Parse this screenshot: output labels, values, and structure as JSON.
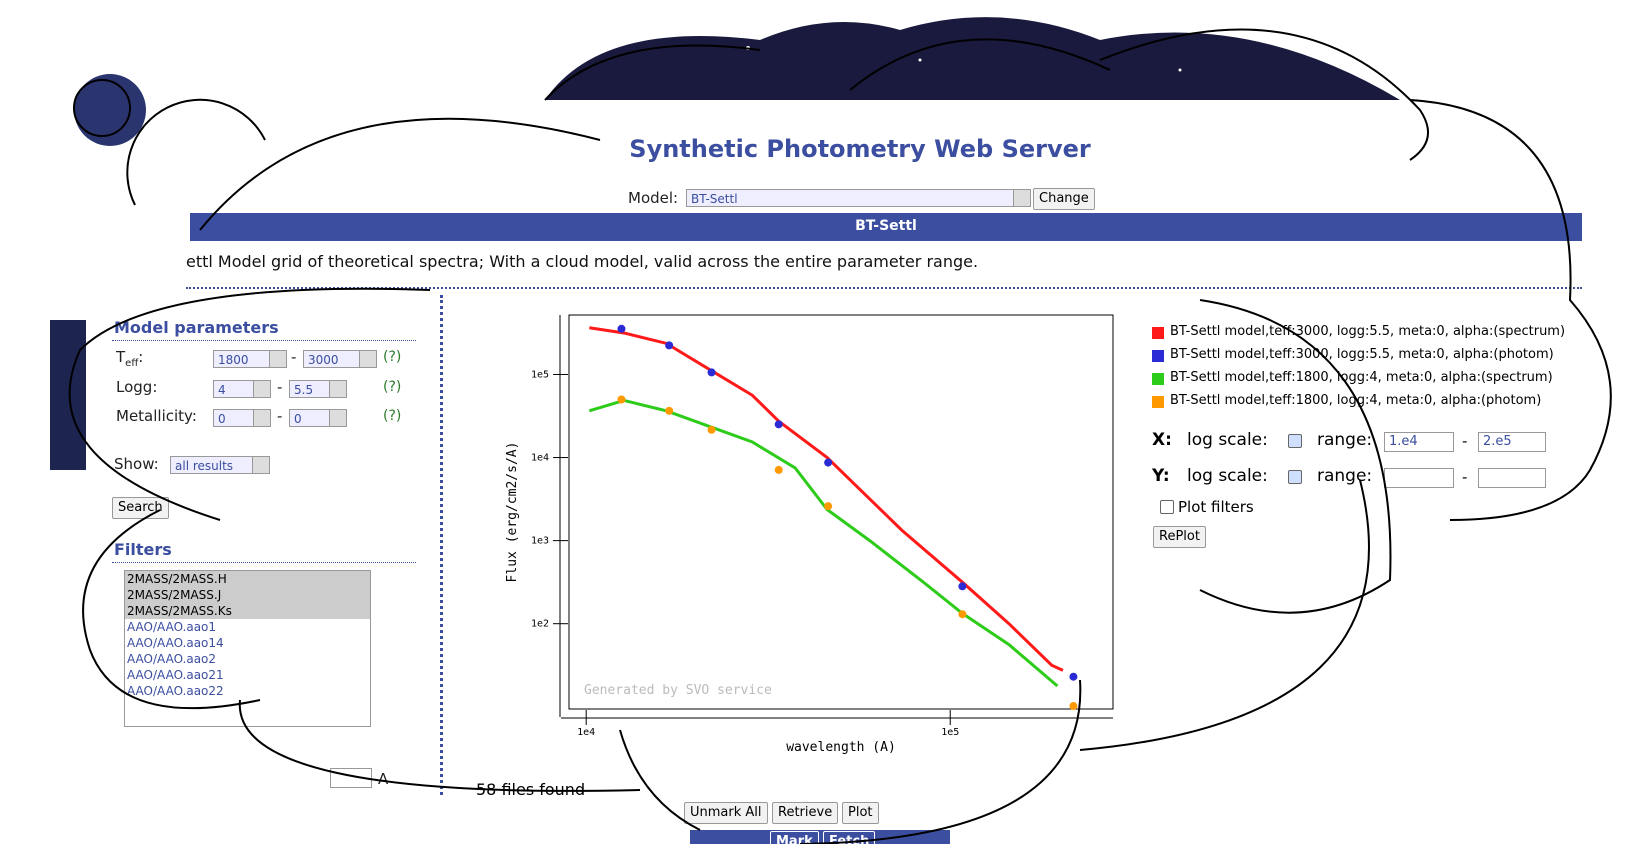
{
  "header": {
    "title": "Synthetic Photometry Web Server",
    "model_label": "Model:",
    "model_value": "BT-Settl",
    "change_button": "Change"
  },
  "model_bar": "BT-Settl",
  "description": "ettl Model grid of theoretical spectra; With a cloud model, valid across the entire parameter range.",
  "params": {
    "heading": "Model parameters",
    "teff": {
      "label": "T",
      "sub": "eff",
      "suffix": ":",
      "min": "1800",
      "dash": "-",
      "max": "3000",
      "help": "(?)"
    },
    "logg": {
      "label": "Logg:",
      "min": "4",
      "dash": "-",
      "max": "5.5",
      "help": "(?)"
    },
    "meta": {
      "label": "Metallicity:",
      "min": "0",
      "dash": "-",
      "max": "0",
      "help": "(?)"
    },
    "show_label": "Show:",
    "show_value": "all results",
    "search_button": "Search"
  },
  "filters": {
    "heading": "Filters",
    "items": [
      "2MASS/2MASS.H",
      "2MASS/2MASS.J",
      "2MASS/2MASS.Ks",
      "AAO/AAO.aao1",
      "AAO/AAO.aao14",
      "AAO/AAO.aao2",
      "AAO/AAO.aao21",
      "AAO/AAO.aao22"
    ],
    "unit": "A"
  },
  "chart_data": {
    "type": "line",
    "xlabel": "wavelength (A)",
    "ylabel": "Flux (erg/cm2/s/A)",
    "watermark": "Generated by SVO service",
    "xlog": true,
    "ylog": true,
    "xlim": [
      8970,
      280000
    ],
    "ylim": [
      9.4,
      520000
    ],
    "xticks": [
      {
        "value": 10000,
        "label": "1e4"
      },
      {
        "value": 100000,
        "label": "1e5"
      }
    ],
    "yticks": [
      {
        "value": 100,
        "label": "1e2"
      },
      {
        "value": 1000,
        "label": "1e3"
      },
      {
        "value": 10000,
        "label": "1e4"
      },
      {
        "value": 100000,
        "label": "1e5"
      }
    ],
    "series": [
      {
        "name": "BT-Settl model,teff:3000, logg:5.5, meta:0, alpha:(spectrum)",
        "color": "#ff1a1a",
        "style": "line",
        "x": [
          10200,
          12700,
          16600,
          21800,
          28600,
          33800,
          45900,
          56200,
          73700,
          108000,
          145000,
          190000,
          204000
        ],
        "values": [
          365000,
          316000,
          237000,
          115000,
          56200,
          27400,
          10000,
          4220,
          1330,
          316,
          100,
          31.6,
          27.4
        ]
      },
      {
        "name": "BT-Settl model,teff:3000, logg:5.5, meta:0, alpha:(photom)",
        "color": "#2b2bd6",
        "style": "points",
        "x": [
          12500,
          16900,
          22100,
          33800,
          46200,
          108000,
          218000
        ],
        "values": [
          355000,
          224000,
          106000,
          25100,
          8700,
          282,
          23
        ]
      },
      {
        "name": "BT-Settl model,teff:1800, logg:4, meta:0, alpha:(spectrum)",
        "color": "#2ecc1a",
        "style": "line",
        "x": [
          10200,
          12700,
          16600,
          21800,
          28600,
          37500,
          45900,
          60100,
          84400,
          108000,
          145000,
          197000
        ],
        "values": [
          36500,
          48700,
          36500,
          23700,
          15400,
          7500,
          2370,
          1000,
          316,
          133,
          56,
          17.8
        ]
      },
      {
        "name": "BT-Settl model,teff:1800, logg:4, meta:0, alpha:(photom)",
        "color": "#ff9900",
        "style": "points",
        "x": [
          12500,
          16900,
          22100,
          33800,
          46200,
          108000,
          218000
        ],
        "values": [
          50000,
          36500,
          21600,
          7100,
          2600,
          130,
          10.2
        ]
      }
    ]
  },
  "plot_controls": {
    "x_label": "X:",
    "y_label": "Y:",
    "log_scale": "log scale:",
    "range": "range:",
    "x_min": "1.e4",
    "dash": "-",
    "x_max": "2.e5",
    "plot_filters": "Plot filters",
    "replot_button": "RePlot"
  },
  "results": {
    "count": "58 files found",
    "buttons": [
      "Unmark All",
      "Retrieve",
      "Plot"
    ],
    "bar_buttons": [
      "Mark",
      "Fetch"
    ]
  }
}
